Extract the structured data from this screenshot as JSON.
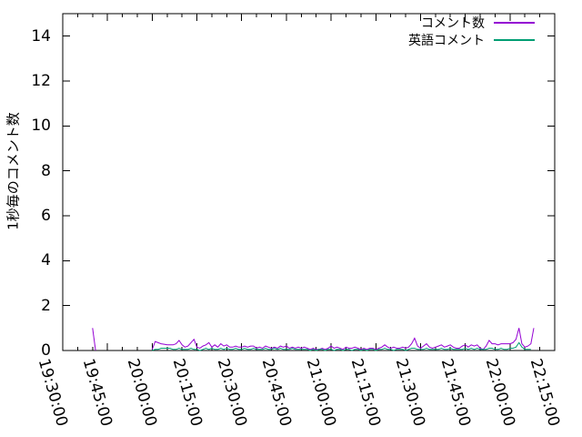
{
  "chart_data": {
    "type": "line",
    "title": "",
    "xlabel": "",
    "ylabel": "1秒毎のコメント数",
    "ylim": [
      0,
      15
    ],
    "yticks": [
      0,
      2,
      4,
      6,
      8,
      10,
      12,
      14
    ],
    "xtick_labels": [
      "19:30:00",
      "19:45:00",
      "20:00:00",
      "20:15:00",
      "20:30:00",
      "20:45:00",
      "21:00:00",
      "21:15:00",
      "21:30:00",
      "21:45:00",
      "22:00:00",
      "22:15:00"
    ],
    "xtick_minutes": [
      0,
      15,
      30,
      45,
      60,
      75,
      90,
      105,
      120,
      135,
      150,
      165
    ],
    "x_minor_tick_every_min": 5,
    "x_axis_note": "minutes offset from 19:30:00",
    "grid": false,
    "legend_position": "top-right-inside",
    "series": [
      {
        "name": "コメント数",
        "color": "#9400d3",
        "segments": [
          {
            "start_min": 10,
            "step_min": 1,
            "values": [
              1,
              0
            ]
          },
          {
            "start_min": 30,
            "step_min": 1,
            "values": [
              0.05,
              0.4,
              0.35,
              0.3,
              0.28,
              0.25,
              0.25,
              0.25,
              0.3,
              0.45,
              0.25,
              0.15,
              0.2,
              0.35,
              0.5,
              0.15,
              0.1,
              0.2,
              0.25,
              0.35,
              0.15,
              0.25,
              0.15,
              0.3,
              0.2,
              0.25,
              0.15,
              0.15,
              0.2,
              0.15,
              0.15,
              0.2,
              0.15,
              0.2,
              0.2,
              0.1,
              0.15,
              0.1,
              0.2,
              0.15,
              0.1,
              0.15,
              0.1,
              0.2,
              0.15,
              0.2,
              0.1,
              0.15,
              0.1,
              0.15,
              0.1,
              0.15,
              0.1,
              0.05,
              0.1,
              0.05,
              0.05,
              0.1,
              0.05,
              0.1,
              0.2,
              0.1,
              0.15,
              0.1,
              0.05,
              0.15,
              0.1,
              0.1,
              0.15,
              0.1,
              0.05,
              0.1,
              0.05,
              0.1,
              0.1,
              0.05,
              0.1,
              0.15,
              0.25,
              0.15,
              0.1,
              0.15,
              0.1,
              0.1,
              0.15,
              0.1,
              0.15,
              0.3,
              0.55,
              0.2,
              0.1,
              0.2,
              0.3,
              0.15,
              0.1,
              0.15,
              0.2,
              0.25,
              0.15,
              0.2,
              0.25,
              0.15,
              0.1,
              0.1,
              0.2,
              0.25,
              0.15,
              0.25,
              0.2,
              0.25,
              0.1,
              0.05,
              0.2,
              0.45,
              0.3,
              0.3,
              0.25,
              0.3,
              0.3,
              0.3,
              0.3,
              0.35,
              0.5,
              1,
              0.3,
              0.15,
              0.2,
              0.3,
              1
            ]
          }
        ]
      },
      {
        "name": "英語コメント",
        "color": "#009e73",
        "segments": [
          {
            "start_min": 30,
            "step_min": 1,
            "values": [
              0,
              0.05,
              0.05,
              0.1,
              0.1,
              0.1,
              0.1,
              0.05,
              0.05,
              0.1,
              0.05,
              0.05,
              0.05,
              0.1,
              0.05,
              0.05,
              0,
              0.05,
              0.1,
              0.05,
              0.1,
              0.05,
              0.05,
              0.1,
              0.05,
              0.1,
              0.05,
              0.05,
              0.1,
              0.05,
              0.05,
              0.1,
              0.05,
              0.05,
              0.1,
              0.05,
              0.05,
              0.05,
              0.1,
              0.05,
              0.05,
              0.1,
              0.05,
              0.1,
              0.05,
              0.05,
              0.05,
              0.1,
              0.05,
              0.05,
              0.05,
              0.05,
              0.05,
              0,
              0.05,
              0,
              0.05,
              0.05,
              0,
              0.05,
              0.05,
              0,
              0.05,
              0.05,
              0,
              0.05,
              0.05,
              0,
              0.05,
              0.05,
              0,
              0.05,
              0,
              0.05,
              0.05,
              0,
              0.05,
              0.05,
              0.1,
              0.05,
              0.05,
              0,
              0.05,
              0.05,
              0.05,
              0,
              0.05,
              0.1,
              0.1,
              0.05,
              0.05,
              0.05,
              0.1,
              0.05,
              0.05,
              0.05,
              0.05,
              0.1,
              0.05,
              0.05,
              0.1,
              0.05,
              0.05,
              0.05,
              0.05,
              0.1,
              0.05,
              0.1,
              0.05,
              0.1,
              0.05,
              0.05,
              0.05,
              0.1,
              0.1,
              0.05,
              0.05,
              0.1,
              0.05,
              0.05,
              0.1,
              0.1,
              0.15,
              0.35,
              0.15,
              0.05,
              0.05,
              0.05
            ]
          }
        ]
      }
    ]
  },
  "colors": {
    "background": "#ffffff",
    "axis": "#000000",
    "text": "#000000",
    "series1": "#9400d3",
    "series2": "#009e73"
  }
}
